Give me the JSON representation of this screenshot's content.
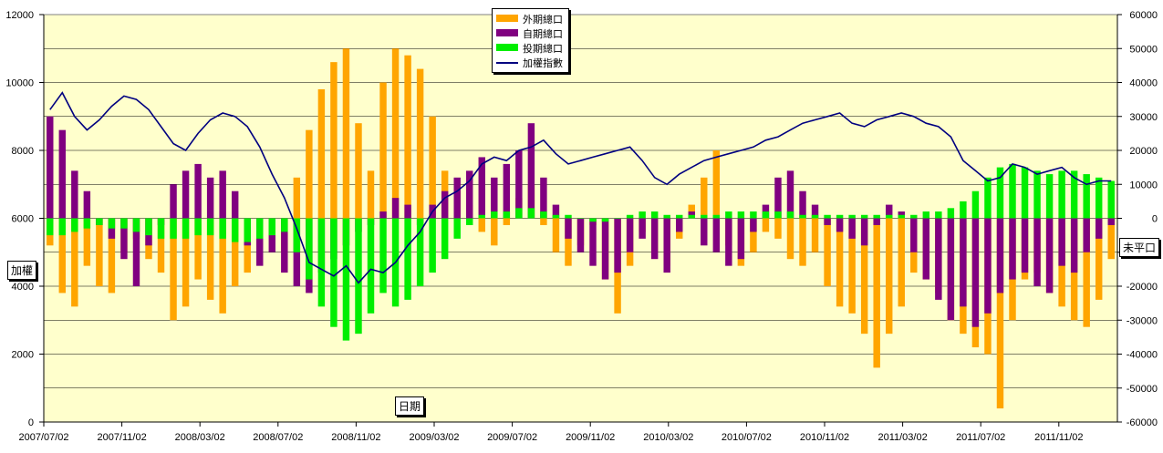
{
  "chart_data": {
    "type": "bar",
    "title": "",
    "xlabel": "日期",
    "ylabel_left": "加權",
    "ylabel_right": "未平口",
    "y_left_ticks": [
      "0",
      "2000",
      "4000",
      "6000",
      "8000",
      "10000",
      "12000"
    ],
    "y_right_ticks": [
      "-60000",
      "-50000",
      "-40000",
      "-30000",
      "-20000",
      "-10000",
      "0",
      "10000",
      "20000",
      "30000",
      "40000",
      "50000",
      "60000"
    ],
    "ylim_left": [
      0,
      12000
    ],
    "ylim_right": [
      -60000,
      60000
    ],
    "x_ticks": [
      "2007/07/02",
      "2007/11/02",
      "2008/03/02",
      "2008/07/02",
      "2008/11/02",
      "2009/03/02",
      "2009/07/02",
      "2009/11/02",
      "2010/03/02",
      "2010/07/02",
      "2010/11/02",
      "2011/03/02",
      "2011/07/02",
      "2011/11/02"
    ],
    "grid": true,
    "legend_position": "top-center",
    "colors": {
      "foreign": "#FFA500",
      "dealer": "#800080",
      "trust": "#00EE00",
      "index": "#000080",
      "background": "#FFFFCC"
    },
    "series": [
      {
        "name": "外期總口",
        "type": "bar",
        "axis": "right",
        "values": [
          -8000,
          -22000,
          -26000,
          -14000,
          -20000,
          -22000,
          -10000,
          -6000,
          -12000,
          -16000,
          -30000,
          -26000,
          -18000,
          -24000,
          -28000,
          -20000,
          -16000,
          -8000,
          -4000,
          -10000,
          12000,
          26000,
          38000,
          46000,
          50000,
          28000,
          14000,
          40000,
          50000,
          48000,
          44000,
          30000,
          14000,
          8000,
          4000,
          -4000,
          -8000,
          -2000,
          6000,
          10000,
          -2000,
          -10000,
          -14000,
          -8000,
          -2000,
          -18000,
          -28000,
          -14000,
          -4000,
          -10000,
          -14000,
          -6000,
          4000,
          12000,
          20000,
          -8000,
          -14000,
          -10000,
          -4000,
          -6000,
          -12000,
          -14000,
          -10000,
          -20000,
          -26000,
          -28000,
          -34000,
          -44000,
          -34000,
          -26000,
          -16000,
          -18000,
          -22000,
          -30000,
          -34000,
          -38000,
          -40000,
          -56000,
          -30000,
          -18000,
          -16000,
          -22000,
          -26000,
          -30000,
          -32000,
          -24000,
          -12000
        ]
      },
      {
        "name": "自期總口",
        "type": "bar",
        "axis": "right",
        "values": [
          30000,
          26000,
          14000,
          8000,
          -2000,
          -6000,
          -12000,
          -20000,
          -8000,
          -2000,
          10000,
          14000,
          16000,
          12000,
          14000,
          8000,
          -8000,
          -14000,
          -10000,
          -16000,
          -20000,
          -22000,
          -16000,
          -12000,
          -8000,
          -4000,
          -2000,
          2000,
          6000,
          4000,
          -2000,
          4000,
          8000,
          12000,
          14000,
          18000,
          12000,
          16000,
          20000,
          28000,
          12000,
          4000,
          -6000,
          -10000,
          -14000,
          -18000,
          -16000,
          -10000,
          -6000,
          -12000,
          -16000,
          -4000,
          2000,
          -8000,
          -10000,
          -14000,
          -12000,
          -4000,
          4000,
          12000,
          14000,
          8000,
          4000,
          -2000,
          -4000,
          -6000,
          -8000,
          -2000,
          4000,
          2000,
          -10000,
          -18000,
          -24000,
          -30000,
          -26000,
          -32000,
          -28000,
          -22000,
          -18000,
          -16000,
          -20000,
          -22000,
          -14000,
          -16000,
          -10000,
          -6000,
          -2000
        ]
      },
      {
        "name": "投期總口",
        "type": "bar",
        "axis": "right",
        "values": [
          -5000,
          -5000,
          -4000,
          -3000,
          -2000,
          -3000,
          -3000,
          -4000,
          -5000,
          -6000,
          -6000,
          -6000,
          -5000,
          -5000,
          -6000,
          -7000,
          -7000,
          -6000,
          -5000,
          -4000,
          -10000,
          -18000,
          -26000,
          -32000,
          -36000,
          -34000,
          -28000,
          -22000,
          -26000,
          -24000,
          -20000,
          -16000,
          -12000,
          -6000,
          -2000,
          1000,
          2000,
          2000,
          3000,
          3000,
          2000,
          1000,
          1000,
          0,
          -1000,
          -1000,
          0,
          1000,
          2000,
          2000,
          1000,
          1000,
          1000,
          1000,
          1000,
          2000,
          2000,
          2000,
          2000,
          2000,
          2000,
          1000,
          1000,
          1000,
          1000,
          1000,
          1000,
          1000,
          1000,
          1000,
          1000,
          2000,
          2000,
          3000,
          5000,
          8000,
          12000,
          15000,
          16000,
          15000,
          14000,
          13000,
          14000,
          14000,
          13000,
          12000,
          11000
        ]
      },
      {
        "name": "加權指數",
        "type": "line",
        "axis": "left",
        "values": [
          9200,
          9700,
          9000,
          8600,
          8900,
          9300,
          9600,
          9500,
          9200,
          8700,
          8200,
          8000,
          8500,
          8900,
          9100,
          9000,
          8700,
          8100,
          7300,
          6600,
          5700,
          4700,
          4500,
          4300,
          4600,
          4100,
          4500,
          4400,
          4700,
          5200,
          5600,
          6200,
          6600,
          6800,
          7100,
          7600,
          7800,
          7700,
          8000,
          8100,
          8300,
          7900,
          7600,
          7700,
          7800,
          7900,
          8000,
          8100,
          7700,
          7200,
          7000,
          7300,
          7500,
          7700,
          7800,
          7900,
          8000,
          8100,
          8300,
          8400,
          8600,
          8800,
          8900,
          9000,
          9100,
          8800,
          8700,
          8900,
          9000,
          9100,
          9000,
          8800,
          8700,
          8400,
          7700,
          7400,
          7100,
          7200,
          7600,
          7500,
          7300,
          7400,
          7500,
          7200,
          7000,
          7100,
          7100
        ]
      }
    ]
  }
}
